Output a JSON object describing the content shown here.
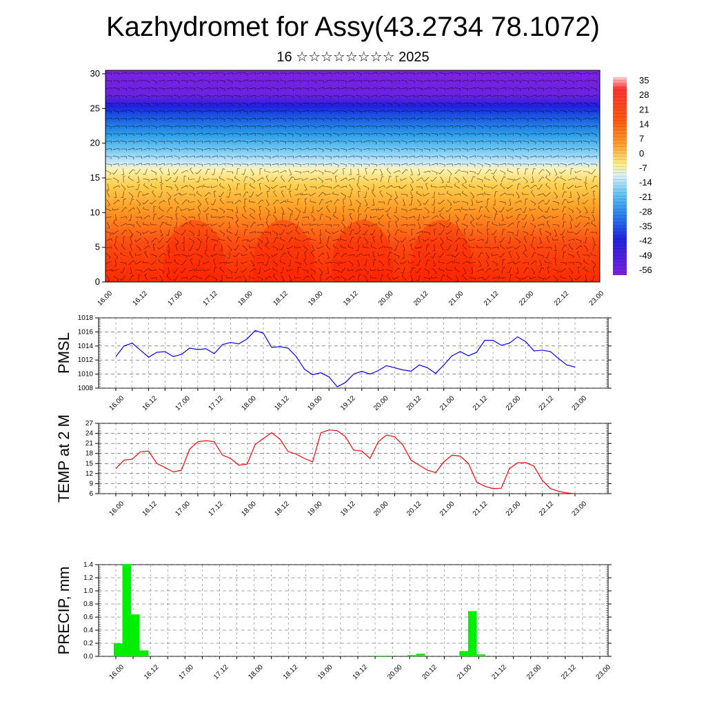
{
  "title": "Kazhydromet for Assy(43.2734 78.1072)",
  "subtitle": "16 ☆☆☆☆☆☆☆☆ 2025",
  "time_ticks": [
    "16.00",
    "16.12",
    "17.00",
    "17.12",
    "18.00",
    "18.12",
    "19.00",
    "19.12",
    "20.00",
    "20.12",
    "21.00",
    "21.12",
    "22.00",
    "22.12",
    "23.00"
  ],
  "chart_data": [
    {
      "type": "heatmap",
      "title": "",
      "y_ticks": [
        0,
        5,
        10,
        15,
        20,
        25,
        30
      ],
      "ylim": [
        0,
        30.5
      ],
      "colorbar_labels": [
        "35",
        "28",
        "21",
        "14",
        "7",
        "0",
        "-7",
        "-14",
        "-21",
        "-28",
        "-35",
        "-42",
        "-49",
        "-56"
      ],
      "color_stops": [
        "#b8ff3a00",
        "#ff3333",
        "#ff7700",
        "#ffbb33",
        "#ffee99",
        "#bbe6f8",
        "#44b8f0",
        "#1860e8",
        "#2222dd",
        "#7b22e0"
      ]
    },
    {
      "type": "line",
      "ylabel": "PMSL",
      "y_ticks": [
        1008,
        1010,
        1012,
        1014,
        1016,
        1018
      ],
      "ylim": [
        1008,
        1018
      ],
      "color": "#0000ff",
      "x": [
        0,
        3,
        6,
        9,
        12,
        15,
        18,
        21,
        24,
        27,
        30,
        33,
        36,
        39,
        42,
        45,
        48,
        51,
        54,
        57,
        60,
        63,
        66,
        69,
        72,
        75,
        78,
        81,
        84,
        87,
        90,
        93,
        96,
        99,
        102,
        105,
        108,
        111,
        114,
        117,
        120,
        123,
        126,
        129,
        132,
        135,
        138,
        141,
        144,
        147,
        150,
        153,
        156,
        159,
        162,
        165,
        168
      ],
      "values": [
        1012.5,
        1014.0,
        1014.4,
        1013.4,
        1012.4,
        1013.1,
        1013.2,
        1012.5,
        1012.8,
        1013.7,
        1013.5,
        1013.6,
        1012.9,
        1014.2,
        1014.5,
        1014.3,
        1015.0,
        1016.2,
        1015.8,
        1013.8,
        1013.9,
        1013.7,
        1012.5,
        1010.7,
        1009.9,
        1010.2,
        1009.6,
        1008.2,
        1008.8,
        1010.0,
        1010.4,
        1010.0,
        1010.5,
        1011.2,
        1010.9,
        1010.6,
        1010.4,
        1011.3,
        1010.9,
        1010.1,
        1011.3,
        1012.6,
        1013.2,
        1012.6,
        1013.1,
        1014.8,
        1014.8,
        1014.1,
        1014.4,
        1015.3,
        1014.6,
        1013.3,
        1013.4,
        1013.2,
        1012.2,
        1011.3,
        1011.0
      ]
    },
    {
      "type": "line",
      "ylabel": "TEMP at 2 M",
      "y_ticks": [
        6,
        9,
        12,
        15,
        18,
        21,
        24,
        27
      ],
      "ylim": [
        6,
        27
      ],
      "color": "#ff0000",
      "x": [
        0,
        3,
        6,
        9,
        12,
        15,
        18,
        21,
        24,
        27,
        30,
        33,
        36,
        39,
        42,
        45,
        48,
        51,
        54,
        57,
        60,
        63,
        66,
        69,
        72,
        75,
        78,
        81,
        84,
        87,
        90,
        93,
        96,
        99,
        102,
        105,
        108,
        111,
        114,
        117,
        120,
        123,
        126,
        129,
        132,
        135,
        138,
        141,
        144,
        147,
        150,
        153,
        156,
        159,
        162,
        165,
        168
      ],
      "values": [
        13.5,
        16.0,
        16.3,
        18.5,
        18.7,
        15.0,
        13.8,
        12.5,
        13.0,
        19.3,
        21.5,
        21.8,
        21.5,
        17.5,
        16.5,
        14.5,
        14.8,
        20.7,
        22.5,
        24.2,
        22.3,
        18.6,
        17.8,
        16.5,
        15.5,
        24.2,
        25.0,
        24.8,
        23.0,
        19.0,
        18.7,
        16.5,
        21.5,
        23.5,
        23.0,
        20.5,
        16.0,
        14.5,
        13.0,
        12.3,
        15.5,
        17.5,
        17.2,
        15.0,
        9.5,
        8.2,
        7.5,
        7.6,
        13.5,
        15.2,
        15.3,
        14.2,
        10.0,
        7.5,
        6.7,
        6.2,
        6.0
      ]
    },
    {
      "type": "bar",
      "ylabel": "PRECIP, mm",
      "y_ticks": [
        "0.0",
        "0.2",
        "0.4",
        "0.6",
        "0.8",
        "1.0",
        "1.2",
        "1.4"
      ],
      "ylim": [
        0,
        1.4
      ],
      "color": "#00ee00",
      "x": [
        0,
        3,
        6,
        9,
        12,
        15,
        18,
        21,
        24,
        27,
        30,
        33,
        36,
        39,
        42,
        45,
        48,
        51,
        54,
        57,
        60,
        63,
        66,
        69,
        72,
        75,
        78,
        81,
        84,
        87,
        90,
        93,
        96,
        99,
        102,
        105,
        108,
        111,
        114,
        117,
        120,
        123,
        126,
        129,
        132,
        135,
        138,
        141,
        144,
        147,
        150,
        153,
        156,
        159,
        162,
        165
      ],
      "values": [
        0.2,
        1.41,
        0.64,
        0.09,
        0,
        0,
        0,
        0,
        0,
        0,
        0,
        0,
        0,
        0,
        0,
        0,
        0,
        0,
        0,
        0,
        0,
        0,
        0,
        0,
        0,
        0,
        0,
        0,
        0,
        0,
        0.01,
        0.01,
        0,
        0,
        0.02,
        0.04,
        0,
        0,
        0,
        0,
        0.08,
        0.69,
        0.03,
        0,
        0,
        0,
        0,
        0,
        0,
        0,
        0,
        0,
        0,
        0,
        0,
        0
      ]
    }
  ]
}
